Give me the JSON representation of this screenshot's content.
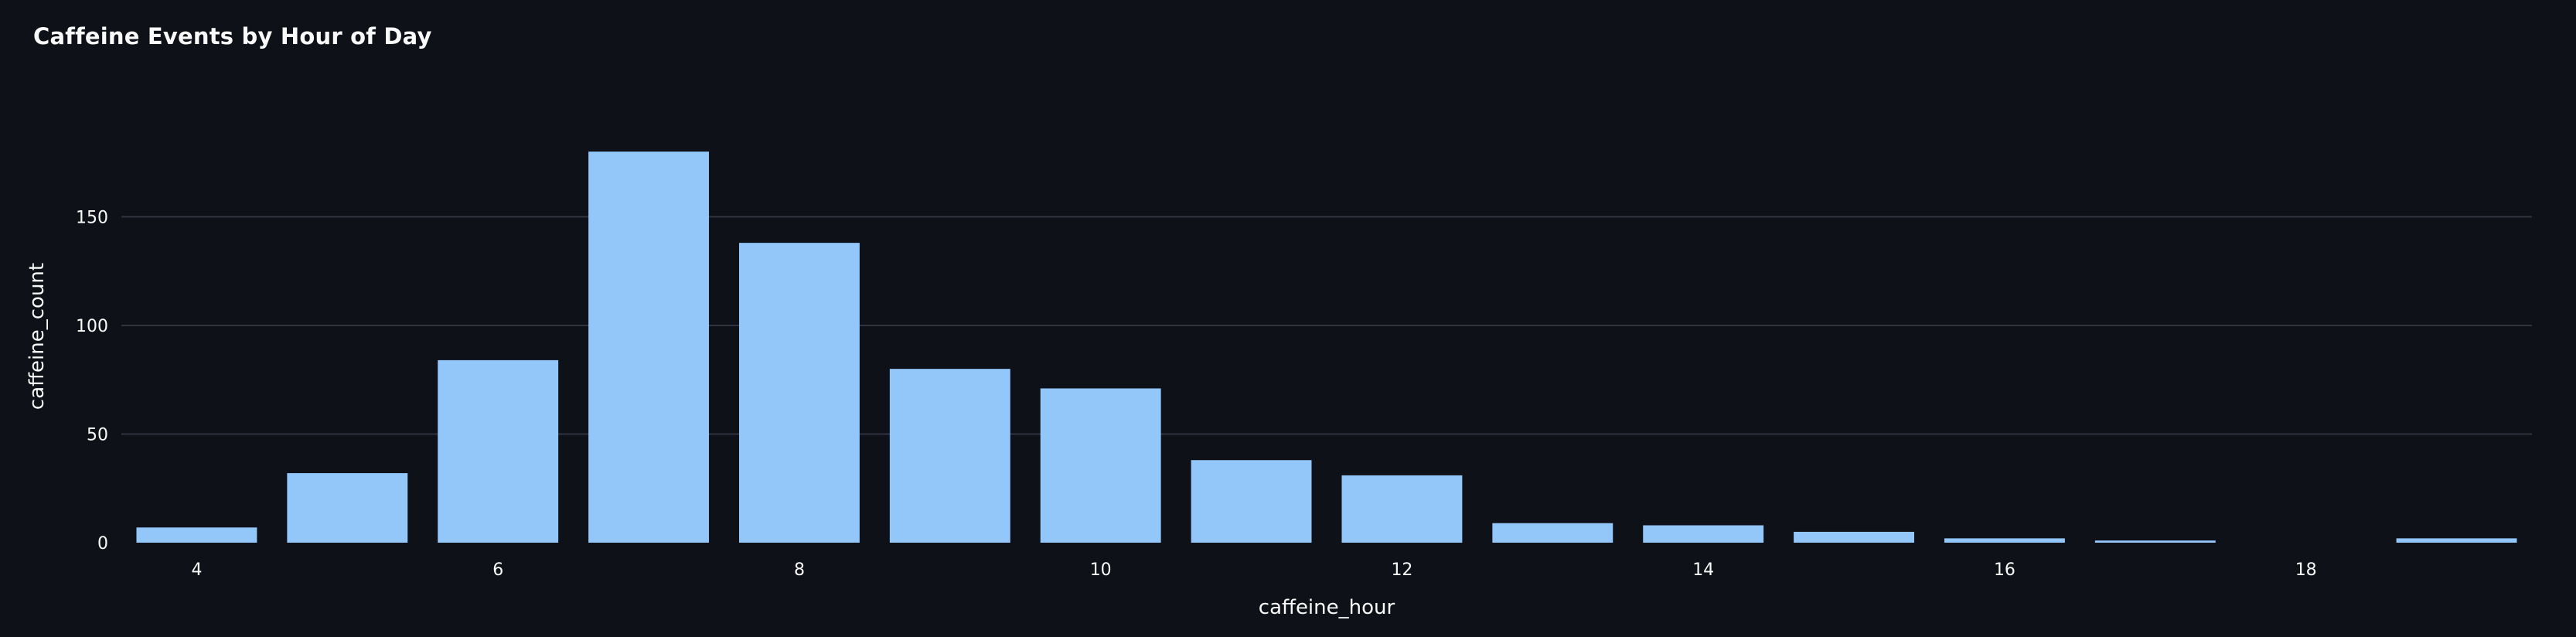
{
  "chart_data": {
    "type": "bar",
    "title": "Caffeine Events by Hour of Day",
    "xlabel": "caffeine_hour",
    "ylabel": "caffeine_count",
    "x": [
      4,
      5,
      6,
      7,
      8,
      9,
      10,
      11,
      12,
      13,
      14,
      15,
      16,
      17,
      18,
      19
    ],
    "values": [
      7,
      32,
      84,
      180,
      138,
      80,
      71,
      38,
      31,
      9,
      8,
      5,
      2,
      1,
      0,
      2
    ],
    "xticks": [
      4,
      6,
      8,
      10,
      12,
      14,
      16,
      18
    ],
    "yticks": [
      0,
      50,
      100,
      150
    ],
    "xlim": [
      3.5,
      19.5
    ],
    "ylim": [
      0,
      190
    ],
    "grid": true,
    "colors": {
      "background": "#0e1117",
      "bar": "#93c7fa",
      "grid": "#31333f",
      "text": "#fafafa"
    }
  }
}
